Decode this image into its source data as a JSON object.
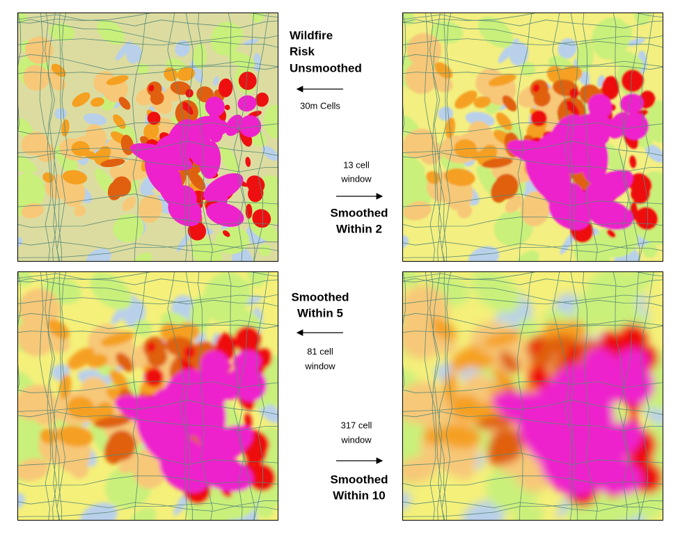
{
  "panels": [
    {
      "title": [
        "Wildfire",
        "Risk",
        "Unsmoothed"
      ],
      "note": "30m Cells"
    },
    {
      "window": [
        "13 cell",
        "window"
      ],
      "title": [
        "Smoothed",
        "Within 2"
      ]
    },
    {
      "title": [
        "Smoothed",
        "Within 5"
      ],
      "window": [
        "81 cell",
        "window"
      ]
    },
    {
      "window": [
        "317 cell",
        "window"
      ],
      "title": [
        "Smoothed",
        "Within 10"
      ]
    }
  ]
}
